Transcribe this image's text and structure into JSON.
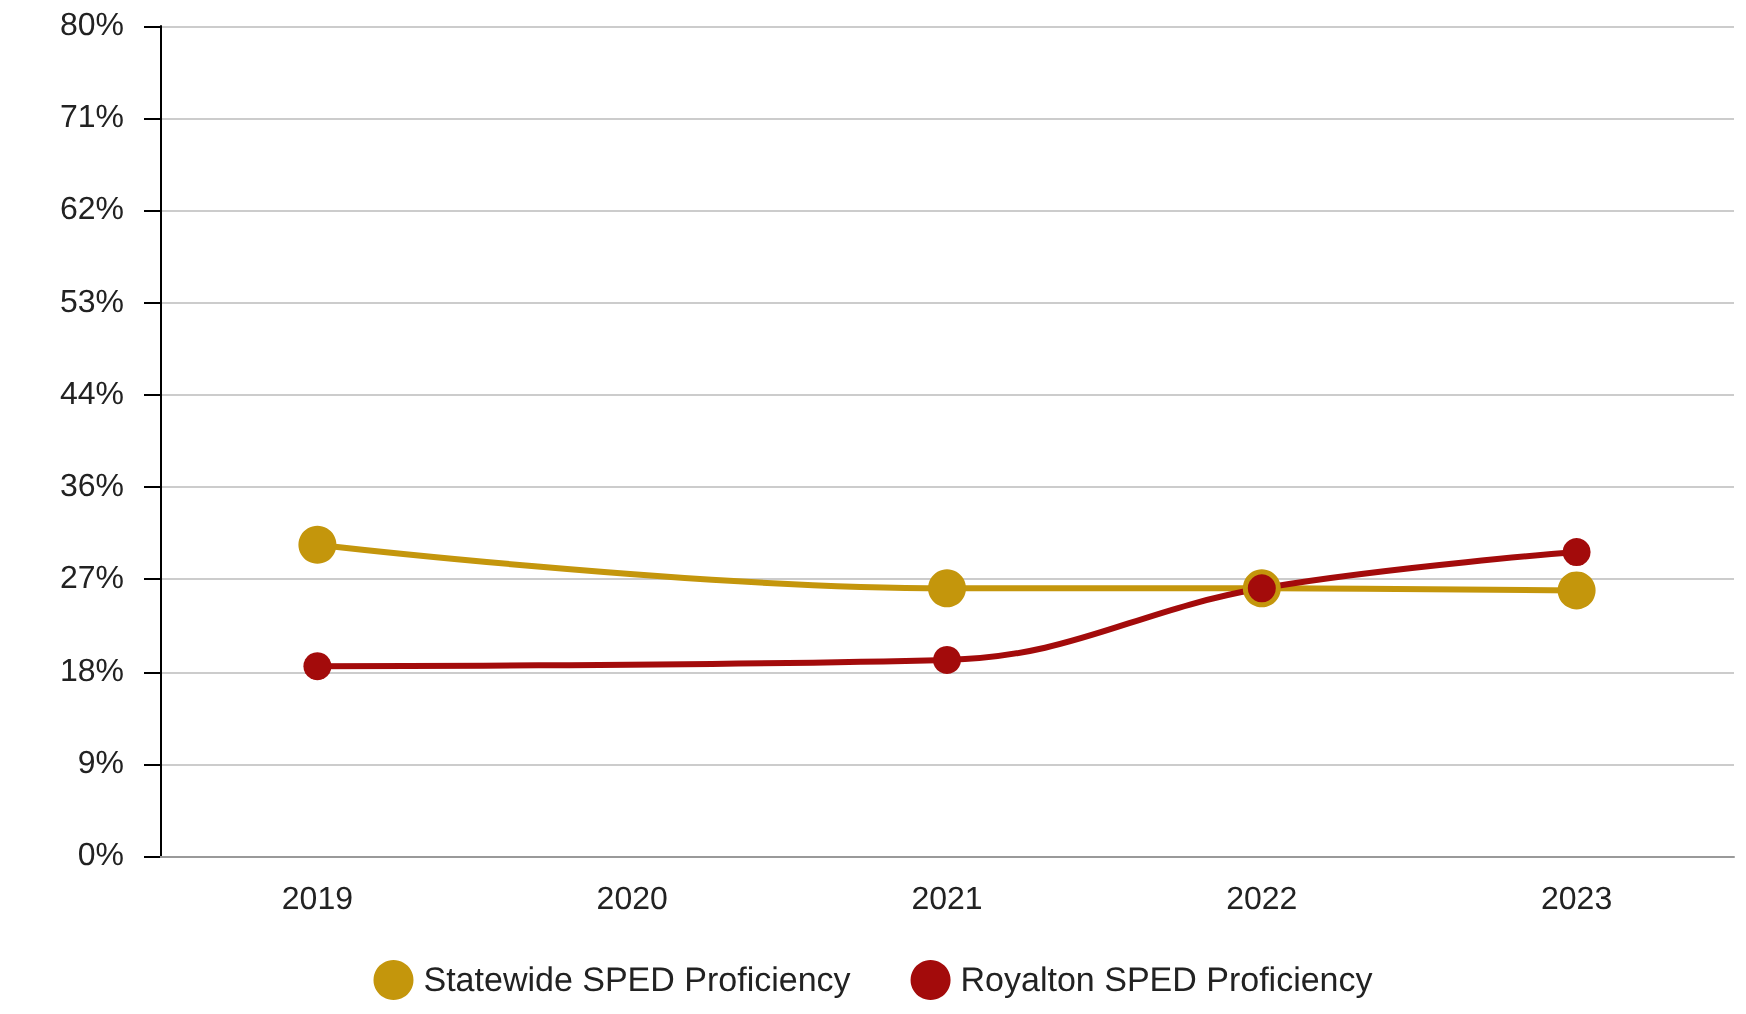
{
  "chart_data": {
    "type": "line",
    "categories": [
      "2019",
      "2020",
      "2021",
      "2022",
      "2023"
    ],
    "series": [
      {
        "name": "Statewide SPED Proficiency",
        "color": "#c4960c",
        "values": [
          30,
          null,
          25.8,
          25.8,
          25.6
        ]
      },
      {
        "name": "Royalton SPED Proficiency",
        "color": "#a30b0b",
        "values": [
          18.3,
          null,
          18.9,
          25.8,
          29.3
        ]
      }
    ],
    "ylim": [
      0,
      80
    ],
    "yticks": [
      {
        "value": 0,
        "label": "0%"
      },
      {
        "value": 8.89,
        "label": "9%"
      },
      {
        "value": 17.78,
        "label": "18%"
      },
      {
        "value": 26.67,
        "label": "27%"
      },
      {
        "value": 35.56,
        "label": "36%"
      },
      {
        "value": 44.44,
        "label": "44%"
      },
      {
        "value": 53.33,
        "label": "53%"
      },
      {
        "value": 62.22,
        "label": "62%"
      },
      {
        "value": 71.11,
        "label": "71%"
      },
      {
        "value": 80,
        "label": "80%"
      }
    ],
    "grid": "y",
    "legend": "bottom",
    "marker": "circle",
    "line_style": "solid"
  }
}
